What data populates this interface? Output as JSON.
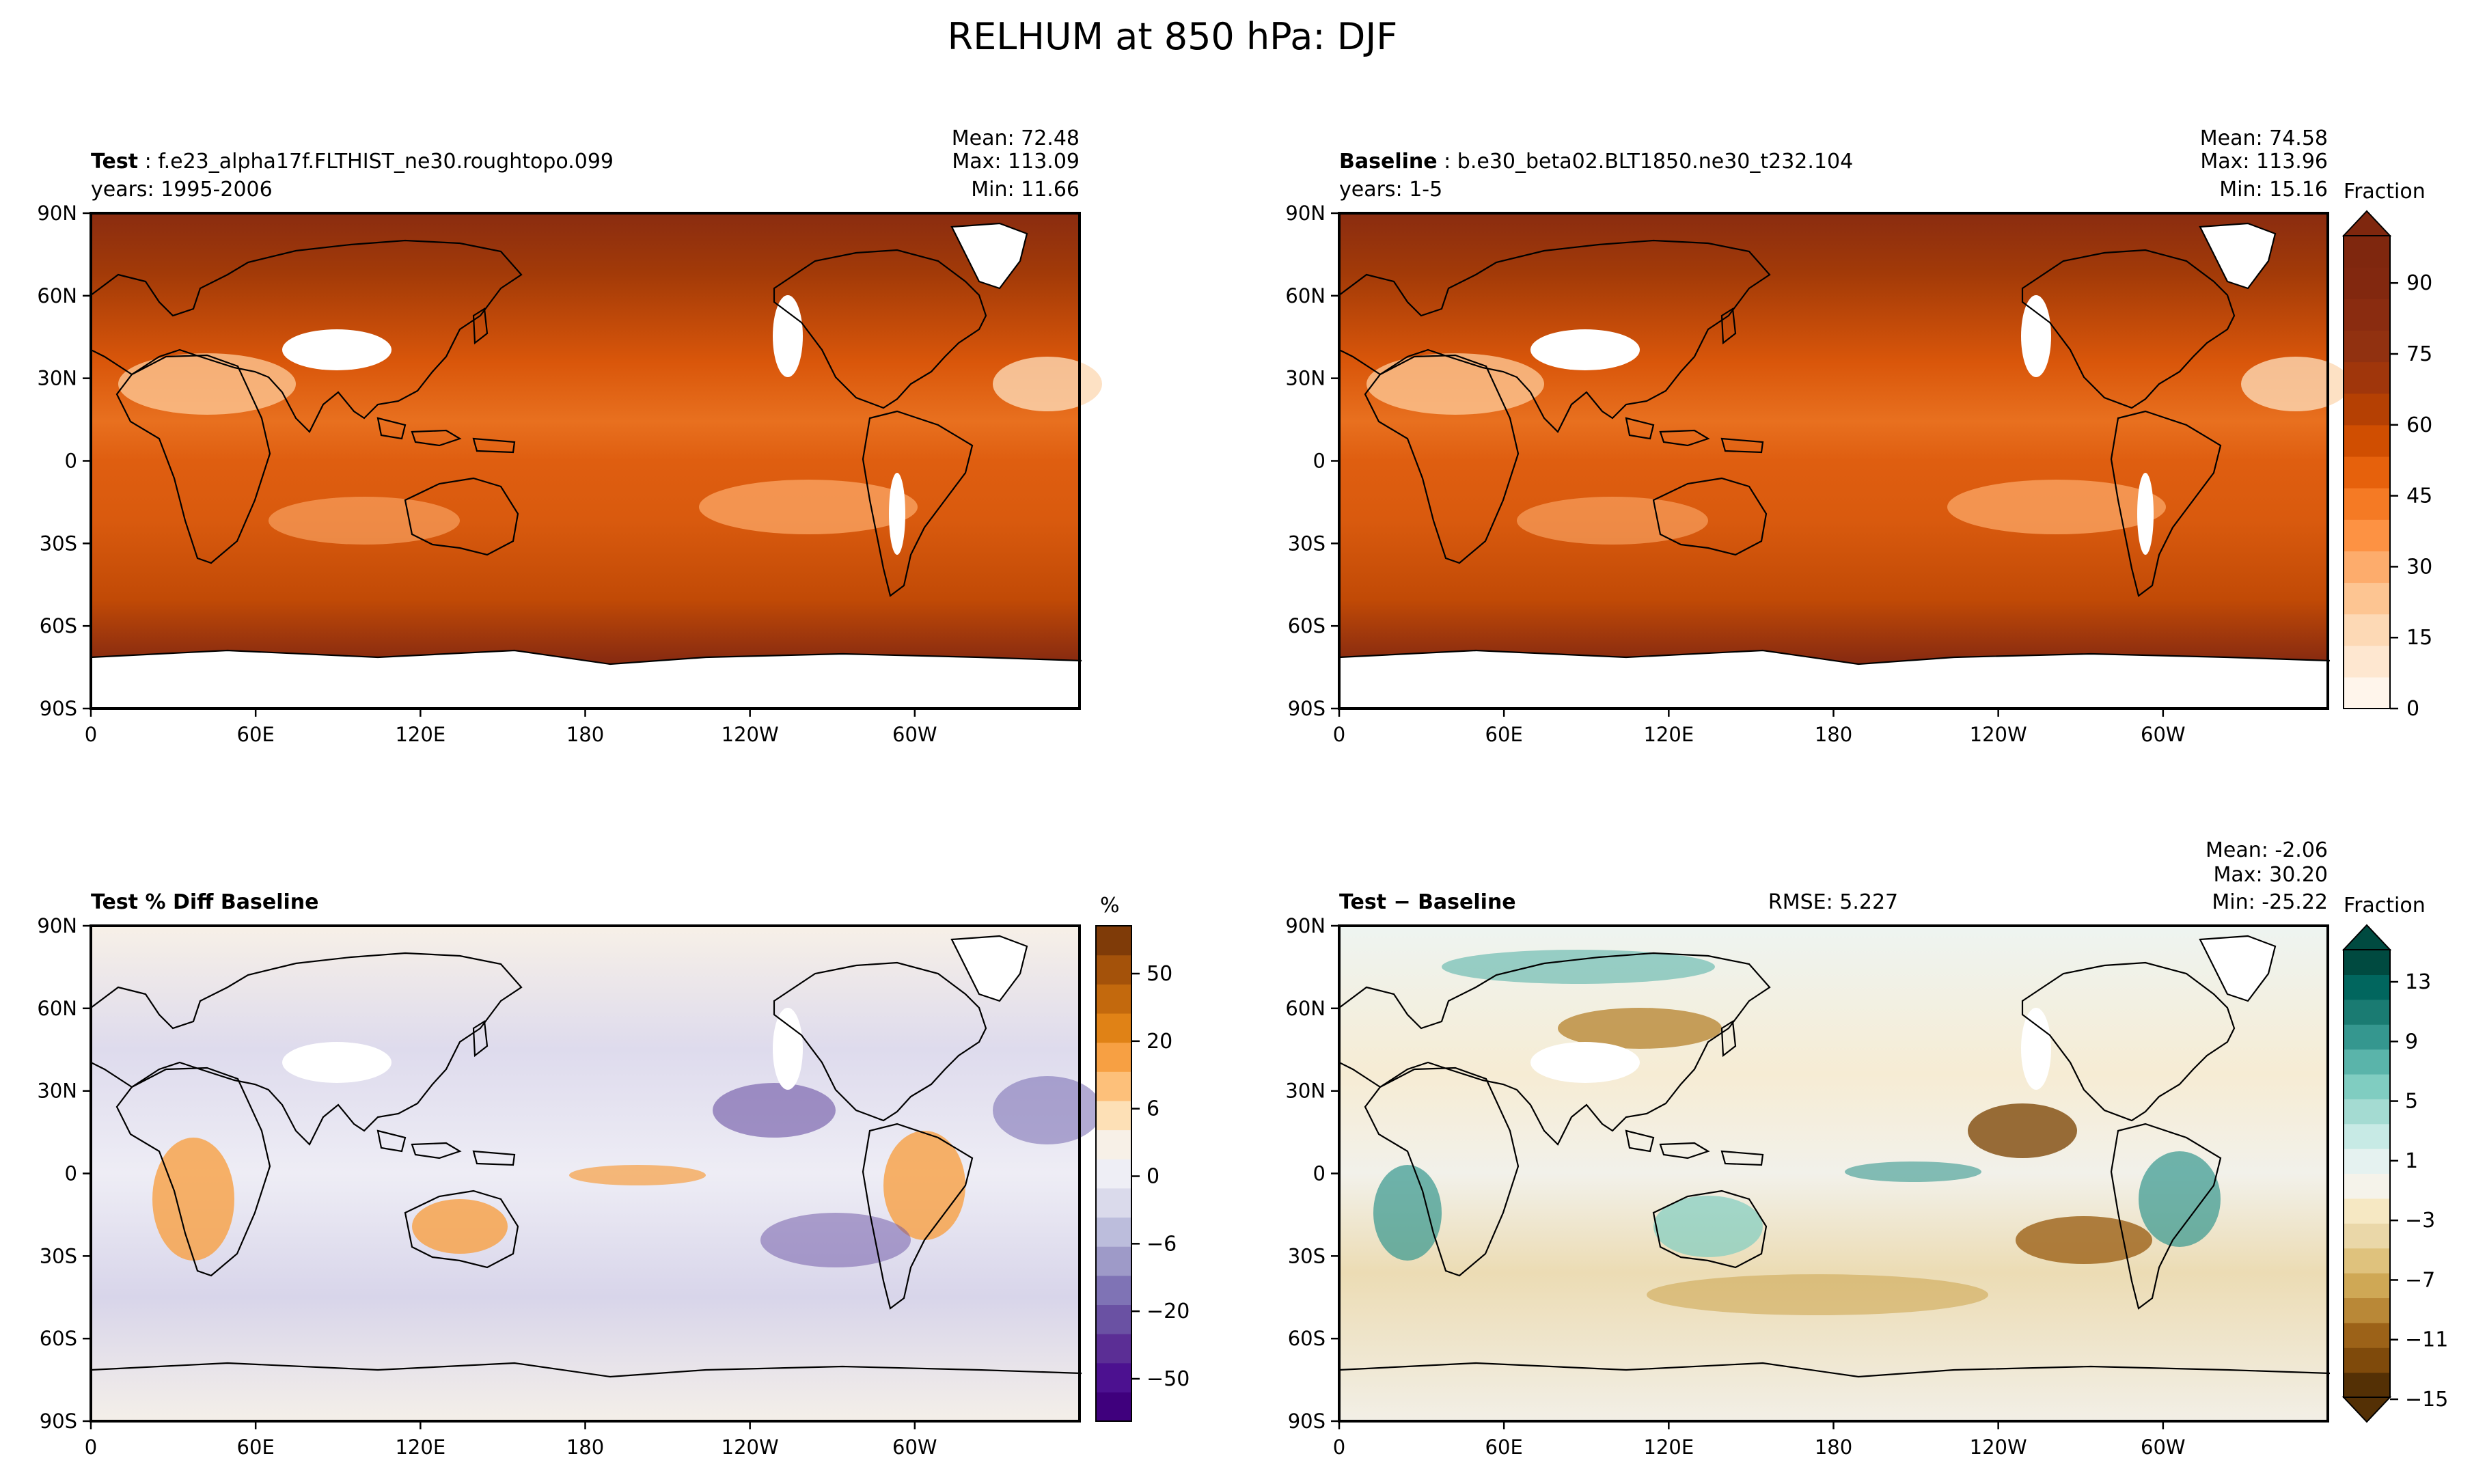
{
  "figure": {
    "title": "RELHUM at 850 hPa: DJF"
  },
  "panels": {
    "test": {
      "label": "Test",
      "case": "f.e23_alpha17f.FLTHIST_ne30.roughtopo.099",
      "years": "years: 1995-2006",
      "stats": [
        "Mean: 72.48",
        "Max: 113.09",
        "Min: 11.66"
      ]
    },
    "baseline": {
      "label": "Baseline",
      "case": "b.e30_beta02.BLT1850.ne30_t232.104",
      "years": "years: 1-5",
      "stats": [
        "Mean: 74.58",
        "Max: 113.96",
        "Min: 15.16"
      ]
    },
    "pctdiff": {
      "title": "Test % Diff Baseline"
    },
    "diff": {
      "label_a": "Test",
      "op": " − ",
      "label_b": "Baseline",
      "rmse": "RMSE: 5.227",
      "stats": [
        "Mean: -2.06",
        "Max: 30.20",
        "Min: -25.22"
      ]
    }
  },
  "chart_data": [
    {
      "type": "heatmap",
      "panel": "test",
      "title": "Test : f.e23_alpha17f.FLTHIST_ne30.roughtopo.099",
      "x_ticks": [
        "0",
        "60E",
        "120E",
        "180",
        "120W",
        "60W"
      ],
      "y_ticks": [
        "90N",
        "60N",
        "30N",
        "0",
        "30S",
        "60S",
        "90S"
      ],
      "xlim": [
        0,
        360
      ],
      "ylim": [
        -90,
        90
      ],
      "stats": {
        "mean": 72.48,
        "max": 113.09,
        "min": 11.66
      }
    },
    {
      "type": "heatmap",
      "panel": "baseline",
      "title": "Baseline : b.e30_beta02.BLT1850.ne30_t232.104",
      "x_ticks": [
        "0",
        "60E",
        "120E",
        "180",
        "120W",
        "60W"
      ],
      "y_ticks": [
        "90N",
        "60N",
        "30N",
        "0",
        "30S",
        "60S",
        "90S"
      ],
      "xlim": [
        0,
        360
      ],
      "ylim": [
        -90,
        90
      ],
      "stats": {
        "mean": 74.58,
        "max": 113.96,
        "min": 15.16
      }
    },
    {
      "type": "heatmap",
      "panel": "pctdiff",
      "title": "Test % Diff Baseline",
      "x_ticks": [
        "0",
        "60E",
        "120E",
        "180",
        "120W",
        "60W"
      ],
      "y_ticks": [
        "90N",
        "60N",
        "30N",
        "0",
        "30S",
        "60S",
        "90S"
      ],
      "xlim": [
        0,
        360
      ],
      "ylim": [
        -90,
        90
      ]
    },
    {
      "type": "heatmap",
      "panel": "diff",
      "title": "Test − Baseline",
      "x_ticks": [
        "0",
        "60E",
        "120E",
        "180",
        "120W",
        "60W"
      ],
      "y_ticks": [
        "90N",
        "60N",
        "30N",
        "0",
        "30S",
        "60S",
        "90S"
      ],
      "xlim": [
        0,
        360
      ],
      "ylim": [
        -90,
        90
      ],
      "stats": {
        "mean": -2.06,
        "max": 30.2,
        "min": -25.22,
        "rmse": 5.227
      }
    }
  ],
  "colorbars": {
    "field": {
      "label": "Fraction",
      "extend": "max",
      "range": [
        0,
        100
      ],
      "n_levels": 20,
      "ticks": [
        "0",
        "15",
        "30",
        "45",
        "60",
        "75",
        "90"
      ],
      "colors": [
        "#fff5eb",
        "#fee7d0",
        "#fdd9b5",
        "#fdc592",
        "#fdac6c",
        "#fd9243",
        "#f57a24",
        "#e6610c",
        "#d04e01",
        "#b54003",
        "#a0360b",
        "#913110",
        "#8a2c10",
        "#82280f",
        "#7f270e"
      ]
    },
    "pct": {
      "label": "%",
      "ticks": [
        "50",
        "20",
        "6",
        "0",
        "−6",
        "−20",
        "−50"
      ],
      "colors": [
        "#3f007d",
        "#4c1190",
        "#5b2e95",
        "#6a51a3",
        "#7f73b5",
        "#9e9ac8",
        "#bcbddc",
        "#dadaeb",
        "#eeeef5",
        "#f7f0e7",
        "#fde0b6",
        "#fdc07a",
        "#f7a043",
        "#e08216",
        "#c3690d",
        "#a4520a",
        "#7f3b08"
      ]
    },
    "diff": {
      "label": "Fraction",
      "extend": "both",
      "ticks": [
        "13",
        "9",
        "5",
        "1",
        "−3",
        "−7",
        "−11",
        "−15"
      ],
      "colors": [
        "#543005",
        "#7f4a0b",
        "#9c6218",
        "#b98837",
        "#cfa855",
        "#dfc27d",
        "#ead7a8",
        "#f6e8c3",
        "#f5f3ea",
        "#e5f2f0",
        "#c7eae5",
        "#a4dbd2",
        "#80cdc1",
        "#5ab4aa",
        "#35978f",
        "#1a7b72",
        "#01665e",
        "#004a40"
      ]
    }
  },
  "colors": {
    "land_outline": "#000000",
    "missing": "#ffffff"
  }
}
